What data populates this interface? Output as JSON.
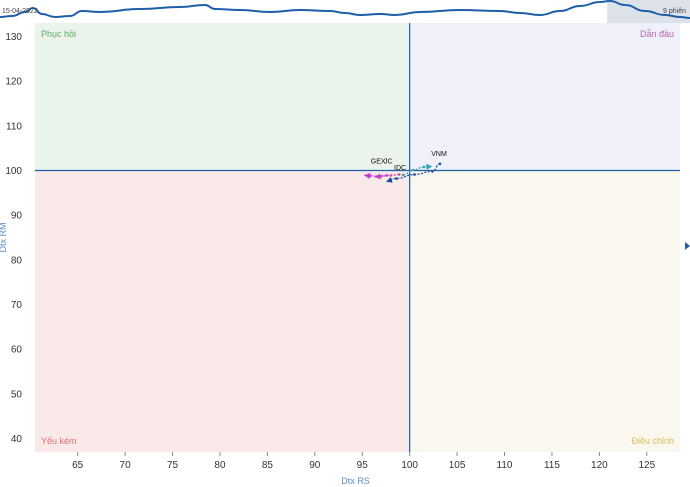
{
  "navigator": {
    "date_label": "15-04-2022",
    "session_label": "9 phiên",
    "line_color": "#1f5fa8",
    "selection_start": 0.88,
    "selection_end": 1.0
  },
  "chart_data": {
    "type": "scatter",
    "title": "",
    "xlabel": "Dtx RS",
    "ylabel": "Dtx RM",
    "xlim": [
      60.5,
      128.5
    ],
    "ylim": [
      37,
      133
    ],
    "xticks": [
      65,
      70,
      75,
      80,
      85,
      90,
      95,
      100,
      105,
      110,
      115,
      120,
      125
    ],
    "yticks": [
      40,
      50,
      60,
      70,
      80,
      90,
      100,
      110,
      120,
      130
    ],
    "center": [
      100,
      100
    ],
    "grid": false,
    "quadrants": [
      {
        "name": "Phục hồi",
        "position": "top-left",
        "fill": "#ebf4ec",
        "text_color": "#5cab62"
      },
      {
        "name": "Dẫn đầu",
        "position": "top-right",
        "fill": "#eff0f9",
        "text_color": "#b866b8"
      },
      {
        "name": "Yếu kém",
        "position": "bottom-left",
        "fill": "#f9e9e9",
        "text_color": "#e06d6d"
      },
      {
        "name": "Điều chỉnh",
        "position": "bottom-right",
        "fill": "#f9f7ee",
        "text_color": "#dcbb5f"
      }
    ],
    "series": [
      {
        "name": "VNM",
        "color": "#1f4e9e",
        "x": [
          103.2,
          102.4,
          100.5,
          98.6,
          97.5
        ],
        "y": [
          101.5,
          99.8,
          99.1,
          98.2,
          97.5
        ]
      },
      {
        "name": "IDC",
        "color": "#3aa6b0",
        "x": [
          99.3,
          100.4,
          101.5,
          102.4
        ],
        "y": [
          99.0,
          100.1,
          100.8,
          100.9
        ]
      },
      {
        "name": "GEX",
        "color": "#c94faa",
        "x": [
          98.9,
          98.0,
          97.0,
          96.3
        ],
        "y": [
          99.1,
          98.9,
          98.7,
          98.5
        ]
      },
      {
        "name": "JC",
        "color": "#c23ad6",
        "x": [
          97.6,
          96.6,
          95.8,
          95.2
        ],
        "y": [
          98.9,
          98.7,
          98.8,
          98.9
        ]
      }
    ]
  }
}
